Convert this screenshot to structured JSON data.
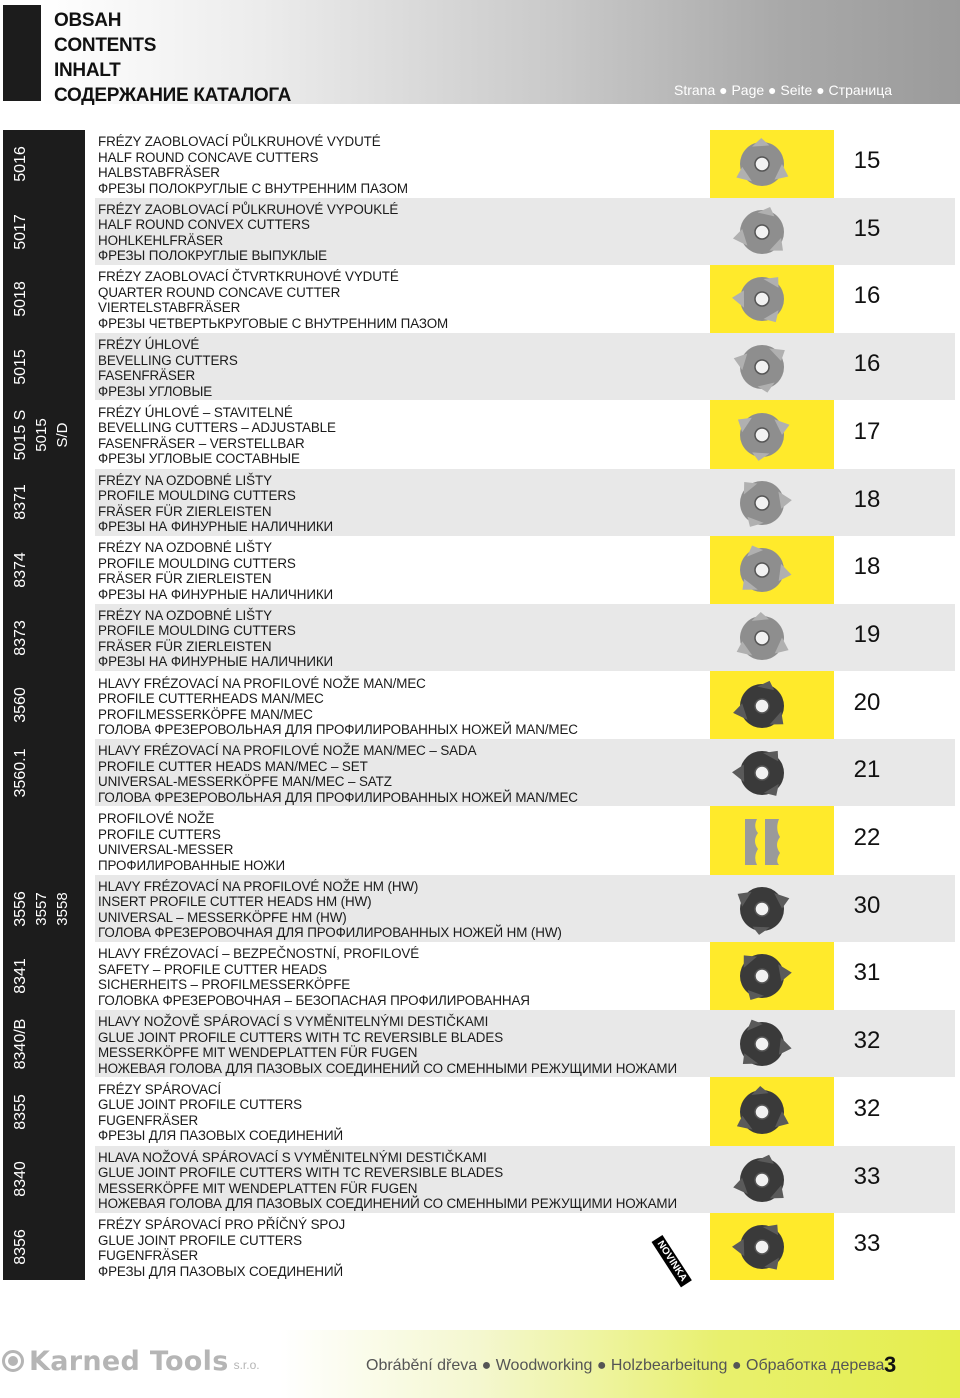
{
  "header": {
    "title_lines": [
      "OBSAH",
      "CONTENTS",
      "INHALT",
      "СОДЕРЖАНИЕ КАТАЛОГА"
    ],
    "page_label": "Strana ● Page ● Seite ● Страница"
  },
  "code_groups": [
    {
      "lines": [
        "5016"
      ]
    },
    {
      "lines": [
        "5017"
      ]
    },
    {
      "lines": [
        "5018"
      ]
    },
    {
      "lines": [
        "5015"
      ]
    },
    {
      "lines": [
        "5015 S",
        "5015",
        "S/D"
      ]
    },
    {
      "lines": [
        "8371"
      ]
    },
    {
      "lines": [
        "8374"
      ]
    },
    {
      "lines": [
        "8373"
      ]
    },
    {
      "lines": [
        "3560"
      ]
    },
    {
      "lines": [
        "3560.1"
      ]
    },
    {
      "lines": []
    },
    {
      "lines": [
        "3556",
        "3557",
        "3558"
      ]
    },
    {
      "lines": [
        "8341"
      ]
    },
    {
      "lines": [
        "8340/B"
      ]
    },
    {
      "lines": [
        "8355"
      ]
    },
    {
      "lines": [
        "8340"
      ]
    },
    {
      "lines": [
        "8356"
      ]
    }
  ],
  "rows": [
    {
      "lines": [
        "FRÉZY ZAOBLOVACÍ PŮLKRUHOVÉ VYDUTÉ",
        "HALF ROUND CONCAVE CUTTERS",
        "HALBSTABFRÄSER",
        "ФРЕЗЫ ПОЛОКРУГЛЫЕ С ВНУТРЕННИМ ПАЗОМ"
      ],
      "page": "15",
      "icon": "concave-cutter-icon"
    },
    {
      "lines": [
        "FRÉZY ZAOBLOVACÍ PŮLKRUHOVÉ VYPOUKLÉ",
        "HALF ROUND CONVEX CUTTERS",
        "HOHLKEHLFRÄSER",
        "ФРЕЗЫ ПОЛОКРУГЛЫЕ ВЫПУКЛЫЕ"
      ],
      "page": "15",
      "icon": "convex-cutter-icon"
    },
    {
      "lines": [
        "FRÉZY ZAOBLOVACÍ ČTVRTKRUHOVÉ VYDUTÉ",
        "QUARTER ROUND CONCAVE CUTTER",
        "VIERTELSTABFRÄSER",
        "ФРЕЗЫ ЧЕТВЕРТЬКРУГОВЫЕ С ВНУТРЕННИМ ПАЗОМ"
      ],
      "page": "16",
      "icon": "quarter-cutter-icon"
    },
    {
      "lines": [
        "FRÉZY ÚHLOVÉ",
        "BEVELLING CUTTERS",
        "FASENFRÄSER",
        "ФРЕЗЫ УГЛОВЫЕ"
      ],
      "page": "16",
      "icon": "bevel-cutter-icon"
    },
    {
      "lines": [
        "FRÉZY ÚHLOVÉ – STAVITELNÉ",
        "BEVELLING CUTTERS – ADJUSTABLE",
        "FASENFRÄSER – VERSTELLBAR",
        "ФРЕЗЫ УГЛОВЫЕ СОСТАВНЫЕ"
      ],
      "page": "17",
      "icon": "adjustable-cutter-icon"
    },
    {
      "lines": [
        "FRÉZY NA OZDOBNÉ LIŠTY",
        "PROFILE MOULDING CUTTERS",
        "FRÄSER FÜR ZIERLEISTEN",
        "ФРЕЗЫ НА ФИНУРНЫЕ НАЛИЧНИКИ"
      ],
      "page": "18",
      "icon": "moulding-cutter-icon"
    },
    {
      "lines": [
        "FRÉZY NA OZDOBNÉ LIŠTY",
        "PROFILE MOULDING CUTTERS",
        "FRÄSER FÜR ZIERLEISTEN",
        "ФРЕЗЫ НА ФИНУРНЫЕ НАЛИЧНИКИ"
      ],
      "page": "18",
      "icon": "moulding-cutter-icon"
    },
    {
      "lines": [
        "FRÉZY NA OZDOBNÉ LIŠTY",
        "PROFILE MOULDING CUTTERS",
        "FRÄSER FÜR ZIERLEISTEN",
        "ФРЕЗЫ НА ФИНУРНЫЕ НАЛИЧНИКИ"
      ],
      "page": "19",
      "icon": "moulding-cutter-icon"
    },
    {
      "lines": [
        "HLAVY FRÉZOVACÍ NA PROFILOVÉ NOŽE MAN/MEC",
        "PROFILE CUTTERHEADS MAN/MEC",
        "PROFILMESSERKÖPFE MAN/MEC",
        "ГОЛОВА ФРЕЗЕРОВОЛЬНАЯ ДЛЯ ПРОФИЛИРОВАННЫХ НОЖЕЙ MAN/MEC"
      ],
      "page": "20",
      "icon": "cutterhead-icon"
    },
    {
      "lines": [
        "HLAVY FRÉZOVACÍ NA PROFILOVÉ NOŽE MAN/MEC – SADA",
        "PROFILE CUTTER HEADS MAN/MEC – SET",
        "UNIVERSAL-MESSERKÖPFE MAN/MEC – SATZ",
        "ГОЛОВА ФРЕЗЕРОВОЛЬНАЯ ДЛЯ ПРОФИЛИРОВАННЫХ НОЖЕЙ MAN/MEC"
      ],
      "page": "21",
      "icon": "cutterhead-set-icon"
    },
    {
      "lines": [
        "PROFILOVÉ NOŽE",
        "PROFILE CUTTERS",
        "UNIVERSAL-MESSER",
        "ПРОФИЛИРОВАННЫЕ НОЖИ"
      ],
      "page": "22",
      "icon": "profile-knife-icon"
    },
    {
      "lines": [
        "HLAVY FRÉZOVACÍ NA PROFILOVÉ NOŽE HM (HW)",
        "INSERT PROFILE CUTTER HEADS HM (HW)",
        "UNIVERSAL – MESSERKÖPFE HM (HW)",
        "ГОЛОВА ФРЕЗЕРОВОЧНАЯ ДЛЯ ПРОФИЛИРОВАННЫХ НОЖЕЙ HM (HW)"
      ],
      "page": "30",
      "icon": "insert-cutterhead-icon"
    },
    {
      "lines": [
        "HLAVY FRÉZOVACÍ – BEZPEČNOSTNÍ, PROFILOVÉ",
        "SAFETY – PROFILE CUTTER HEADS",
        "SICHERHEITS – PROFILMESSERKÖPFE",
        "ГОЛОВКА ФРЕЗЕРОВОЧНАЯ – БЕЗОПАСНАЯ ПРОФИЛИРОВАННАЯ"
      ],
      "page": "31",
      "icon": "safety-cutterhead-icon"
    },
    {
      "lines": [
        "HLAVY NOŽOVĚ SPÁROVACÍ S VYMĚNITELNÝMI DESTIČKAMI",
        "GLUE JOINT PROFILE CUTTERS WITH TC REVERSIBLE BLADES",
        "MESSERKÖPFE MIT WENDEPLATTEN FÜR FUGEN",
        "НОЖЕВАЯ ГОЛОВА ДЛЯ ПАЗОВЫХ СОЕДИНЕНИЙ СО СМЕННЫМИ РЕЖУЩИМИ НОЖАМИ"
      ],
      "page": "32",
      "icon": "glue-joint-head-icon"
    },
    {
      "lines": [
        "FRÉZY SPÁROVACÍ",
        "GLUE JOINT PROFILE CUTTERS",
        "FUGENFRÄSER",
        "ФРЕЗЫ ДЛЯ ПАЗОВЫХ СОЕДИНЕНИЙ"
      ],
      "page": "32",
      "icon": "glue-joint-cutter-icon"
    },
    {
      "lines": [
        "HLAVA NOŽOVÁ SPÁROVACÍ S VYMĚNITELNÝMI DESTIČKAMI",
        "GLUE JOINT PROFILE CUTTERS WITH TC REVERSIBLE BLADES",
        "MESSERKÖPFE MIT WENDEPLATTEN FÜR FUGEN",
        "НОЖЕВАЯ ГОЛОВА ДЛЯ ПАЗОВЫХ СОЕДИНЕНИЙ СО СМЕННЫМИ РЕЖУЩИМИ НОЖАМИ"
      ],
      "page": "33",
      "icon": "glue-joint-head-icon"
    },
    {
      "lines": [
        "FRÉZY SPÁROVACÍ PRO PŘÍČNÝ SPOJ",
        "GLUE JOINT PROFILE CUTTERS",
        "FUGENFRÄSER",
        "ФРЕЗЫ ДЛЯ ПАЗОВЫХ СОЕДИНЕНИЙ"
      ],
      "page": "33",
      "icon": "cross-joint-cutter-icon"
    }
  ],
  "novinka_label": "NOVINKA",
  "footer": {
    "logo_text": "Karned Tools",
    "logo_suffix": "s.r.o.",
    "text": "Obrábění dřeva ● Woodworking ● Holzbearbeitung ● Обработка дерева",
    "page_number": "3"
  },
  "colors": {
    "accent_yellow": "#ffea2b",
    "dark": "#1c1c1c",
    "shade": "#e8e8e8"
  }
}
